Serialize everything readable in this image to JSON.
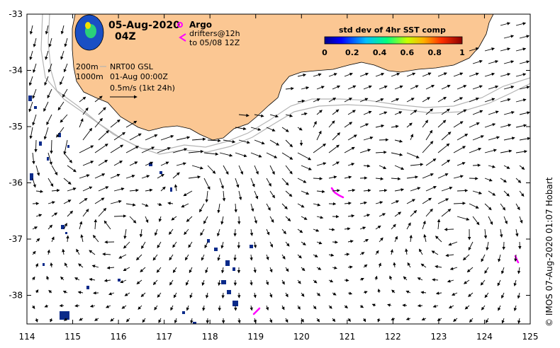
{
  "title": {
    "date": "05-Aug-2020",
    "time": "04Z"
  },
  "legend": {
    "argo_label": "Argo",
    "drifters_label": "drifters@12h",
    "drifters_range": "to 05/08 12Z",
    "isobath_200": "200m",
    "isobath_1000": "1000m",
    "product": "NRT00 GSL",
    "product_date": "01-Aug 00:00Z",
    "vector_scale": "0.5m/s (1kt 24h)"
  },
  "colorbar": {
    "title": "std dev of 4hr SST comp",
    "ticks": [
      "0",
      "0.2",
      "0.4",
      "0.6",
      "0.8",
      "1"
    ]
  },
  "axes": {
    "x_ticks": [
      "114",
      "115",
      "116",
      "117",
      "118",
      "119",
      "120",
      "121",
      "122",
      "123",
      "124",
      "125"
    ],
    "y_ticks": [
      "-33",
      "-34",
      "-35",
      "-36",
      "-37",
      "-38"
    ]
  },
  "credit": "©  IMOS 07-Aug-2020 01:07 Hobart",
  "colors": {
    "land": "#fbc793",
    "ocean": "#ffffff",
    "isobath": "#b4b4b4",
    "drifter": "#ff00ff",
    "data_pixels": "#0a2a8a"
  }
}
